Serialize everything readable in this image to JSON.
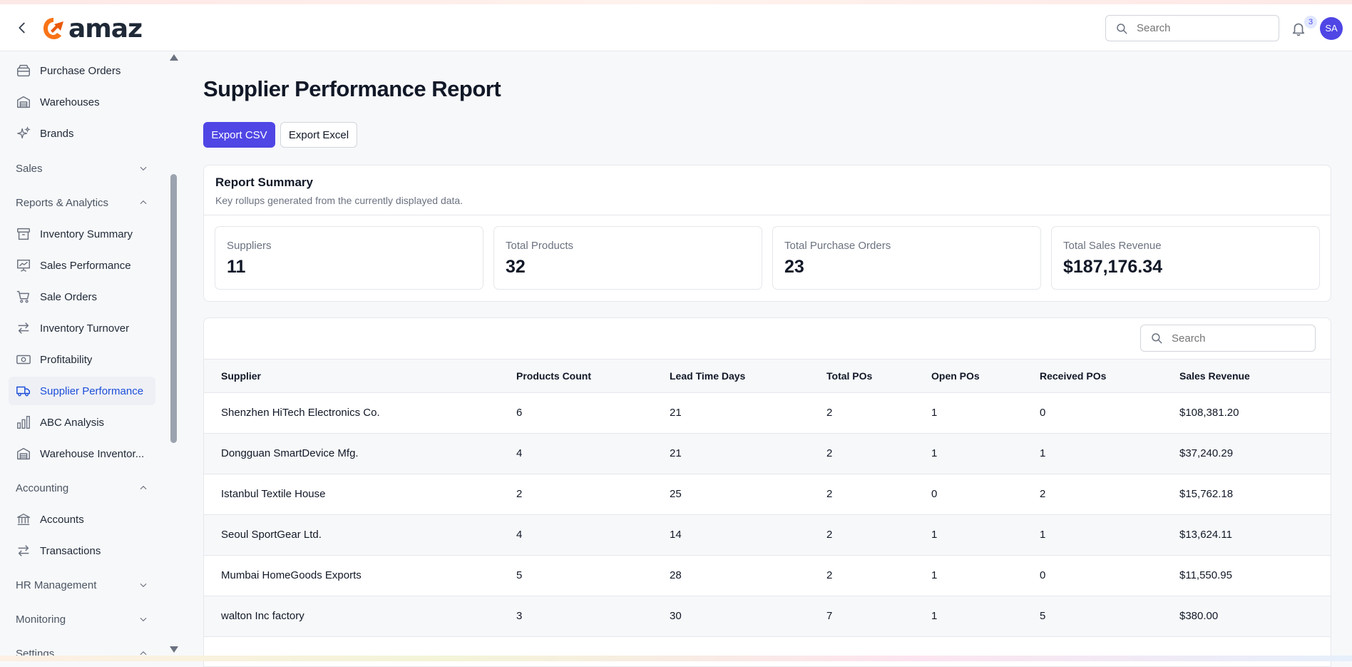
{
  "header": {
    "logo_text": "amaz",
    "search_placeholder": "Search",
    "notification_count": "3",
    "avatar_initials": "SA"
  },
  "sidebar": {
    "items_top": [
      {
        "label": "Purchase Orders",
        "icon": "box-icon"
      },
      {
        "label": "Warehouses",
        "icon": "warehouse-icon"
      },
      {
        "label": "Brands",
        "icon": "sparkles-icon"
      }
    ],
    "section_sales": "Sales",
    "section_reports": "Reports & Analytics",
    "reports_items": [
      {
        "label": "Inventory Summary",
        "icon": "archive-icon"
      },
      {
        "label": "Sales Performance",
        "icon": "presentation-chart-icon"
      },
      {
        "label": "Sale Orders",
        "icon": "cart-icon"
      },
      {
        "label": "Inventory Turnover",
        "icon": "arrows-exchange-icon"
      },
      {
        "label": "Profitability",
        "icon": "cash-icon"
      },
      {
        "label": "Supplier Performance",
        "icon": "truck-icon"
      },
      {
        "label": "ABC Analysis",
        "icon": "bar-chart-icon"
      },
      {
        "label": "Warehouse Inventor...",
        "icon": "warehouse-icon"
      }
    ],
    "section_accounting": "Accounting",
    "accounting_items": [
      {
        "label": "Accounts",
        "icon": "bank-icon"
      },
      {
        "label": "Transactions",
        "icon": "arrows-exchange-icon"
      }
    ],
    "section_hr": "HR Management",
    "section_monitoring": "Monitoring",
    "section_settings": "Settings",
    "active_item": "Supplier Performance"
  },
  "page": {
    "title": "Supplier Performance Report",
    "export_csv_label": "Export CSV",
    "export_excel_label": "Export Excel"
  },
  "summary": {
    "title": "Report Summary",
    "subtitle": "Key rollups generated from the currently displayed data.",
    "stats": [
      {
        "label": "Suppliers",
        "value": "11"
      },
      {
        "label": "Total Products",
        "value": "32"
      },
      {
        "label": "Total Purchase Orders",
        "value": "23"
      },
      {
        "label": "Total Sales Revenue",
        "value": "$187,176.34"
      }
    ]
  },
  "table": {
    "search_placeholder": "Search",
    "columns": [
      "Supplier",
      "Products Count",
      "Lead Time Days",
      "Total POs",
      "Open POs",
      "Received POs",
      "Sales Revenue"
    ],
    "rows": [
      [
        "Shenzhen HiTech Electronics Co.",
        "6",
        "21",
        "2",
        "1",
        "0",
        "$108,381.20"
      ],
      [
        "Dongguan SmartDevice Mfg.",
        "4",
        "21",
        "2",
        "1",
        "1",
        "$37,240.29"
      ],
      [
        "Istanbul Textile House",
        "2",
        "25",
        "2",
        "0",
        "2",
        "$15,762.18"
      ],
      [
        "Seoul SportGear Ltd.",
        "4",
        "14",
        "2",
        "1",
        "1",
        "$13,624.11"
      ],
      [
        "Mumbai HomeGoods Exports",
        "5",
        "28",
        "2",
        "1",
        "0",
        "$11,550.95"
      ],
      [
        "walton Inc factory",
        "3",
        "30",
        "7",
        "1",
        "5",
        "$380.00"
      ]
    ]
  },
  "colors": {
    "accent": "#4f46e5",
    "active_nav_text": "#1d4ed8",
    "logo_orange": "#f97316"
  }
}
